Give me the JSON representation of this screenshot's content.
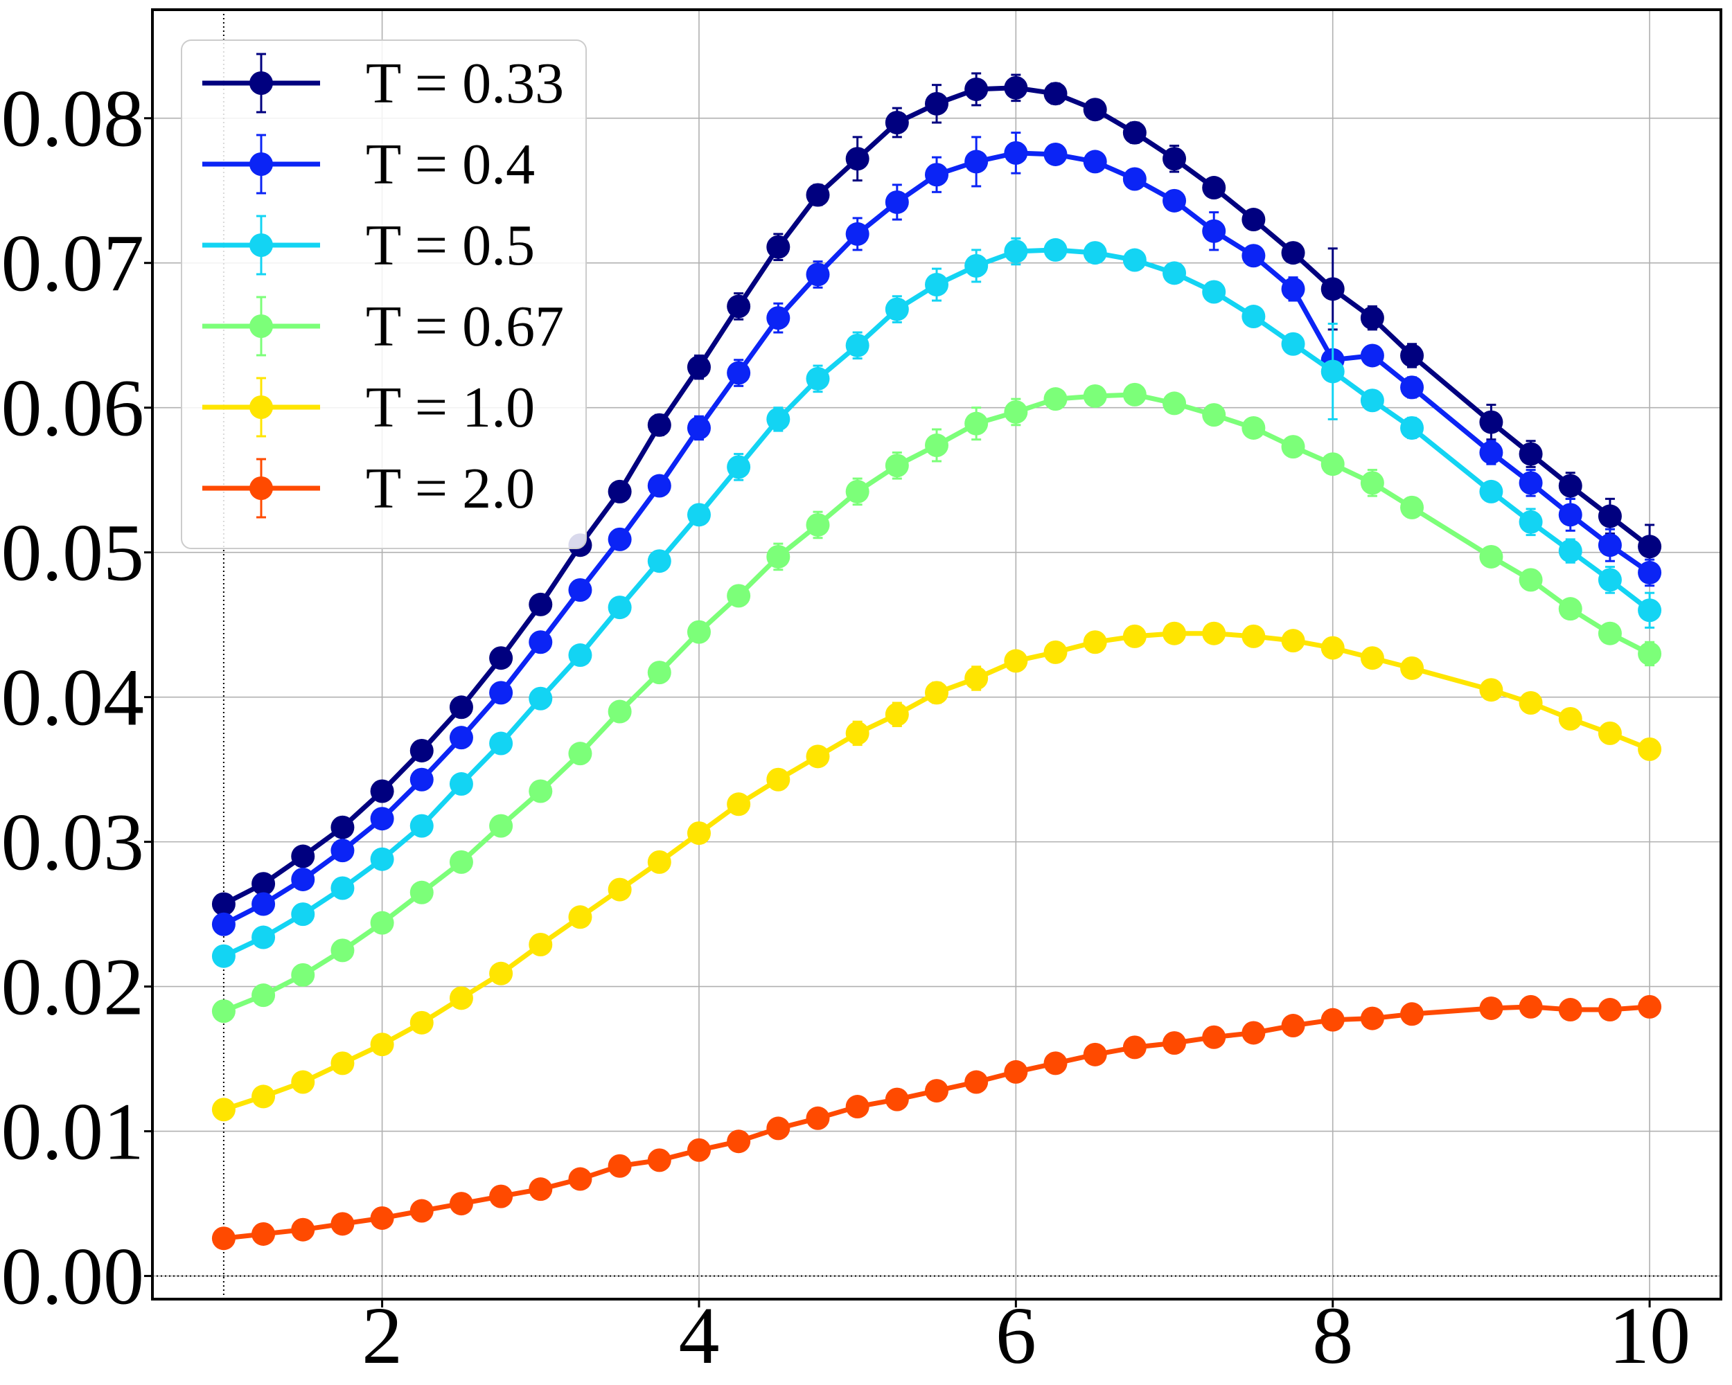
{
  "chart_data": {
    "type": "line",
    "title": "",
    "xlabel": "",
    "ylabel": "",
    "xlim": [
      0.55,
      10.45
    ],
    "ylim": [
      -0.0016,
      0.0875
    ],
    "xticks": [
      2,
      4,
      6,
      8,
      10
    ],
    "xtick_labels": [
      "2",
      "4",
      "6",
      "8",
      "10"
    ],
    "yticks": [
      0.0,
      0.01,
      0.02,
      0.03,
      0.04,
      0.05,
      0.06,
      0.07,
      0.08
    ],
    "ytick_labels": [
      "0.00",
      "0.01",
      "0.02",
      "0.03",
      "0.04",
      "0.05",
      "0.06",
      "0.07",
      "0.08"
    ],
    "grid": true,
    "reference_lines": {
      "x": 1.0,
      "y": 0.0
    },
    "legend_position": "top-left",
    "x": [
      1.0,
      1.25,
      1.5,
      1.75,
      2.0,
      2.25,
      2.5,
      2.75,
      3.0,
      3.25,
      3.5,
      3.75,
      4.0,
      4.25,
      4.5,
      4.75,
      5.0,
      5.25,
      5.5,
      5.75,
      6.0,
      6.25,
      6.5,
      6.75,
      7.0,
      7.25,
      7.5,
      7.75,
      8.0,
      8.25,
      8.5,
      9.0,
      9.25,
      9.5,
      9.75,
      10.0
    ],
    "series": [
      {
        "name": "T = 0.33",
        "color": "#00007f",
        "values": [
          0.0257,
          0.0271,
          0.029,
          0.031,
          0.0335,
          0.0363,
          0.0393,
          0.0427,
          0.0464,
          0.0505,
          0.0542,
          0.0588,
          0.0628,
          0.067,
          0.0711,
          0.0747,
          0.0772,
          0.0797,
          0.081,
          0.082,
          0.0821,
          0.0817,
          0.0806,
          0.079,
          0.0772,
          0.0752,
          0.073,
          0.0707,
          0.0682,
          0.0662,
          0.0636,
          0.059,
          0.0568,
          0.0546,
          0.0525,
          0.0504
        ],
        "errors": [
          0.0004,
          0.0004,
          0.0004,
          0.0004,
          0.0004,
          0.0004,
          0.0004,
          0.0005,
          0.0004,
          0.0005,
          0.0006,
          0.0007,
          0.0008,
          0.0009,
          0.0009,
          0.0007,
          0.0015,
          0.001,
          0.0013,
          0.0011,
          0.0009,
          0.0007,
          0.0006,
          0.0007,
          0.0009,
          0.0006,
          0.0006,
          0.0006,
          0.0028,
          0.0008,
          0.0008,
          0.0012,
          0.0009,
          0.0009,
          0.0012,
          0.0015
        ]
      },
      {
        "name": "T = 0.4",
        "color": "#0b24f5",
        "values": [
          0.0243,
          0.0257,
          0.0274,
          0.0294,
          0.0316,
          0.0343,
          0.0372,
          0.0403,
          0.0438,
          0.0474,
          0.0509,
          0.0546,
          0.0586,
          0.0624,
          0.0662,
          0.0692,
          0.072,
          0.0742,
          0.0761,
          0.077,
          0.0776,
          0.0775,
          0.077,
          0.0758,
          0.0743,
          0.0722,
          0.0705,
          0.0682,
          0.0633,
          0.0636,
          0.0614,
          0.0569,
          0.0548,
          0.0526,
          0.0505,
          0.0486
        ],
        "errors": [
          0.0004,
          0.0004,
          0.0004,
          0.0004,
          0.0004,
          0.0004,
          0.0004,
          0.0004,
          0.0004,
          0.0004,
          0.0005,
          0.0006,
          0.0008,
          0.0009,
          0.001,
          0.0009,
          0.0011,
          0.0012,
          0.0012,
          0.0017,
          0.0014,
          0.0006,
          0.0005,
          0.0006,
          0.0005,
          0.0013,
          0.0006,
          0.0008,
          0.0005,
          0.0006,
          0.0007,
          0.0008,
          0.0009,
          0.0011,
          0.0011,
          0.0009
        ]
      },
      {
        "name": "T = 0.5",
        "color": "#13d4f3",
        "values": [
          0.0221,
          0.0234,
          0.025,
          0.0268,
          0.0288,
          0.0311,
          0.034,
          0.0368,
          0.0399,
          0.0429,
          0.0462,
          0.0494,
          0.0526,
          0.0559,
          0.0592,
          0.062,
          0.0643,
          0.0668,
          0.0685,
          0.0698,
          0.0708,
          0.0709,
          0.0707,
          0.0702,
          0.0693,
          0.068,
          0.0663,
          0.0644,
          0.0625,
          0.0605,
          0.0586,
          0.0542,
          0.0521,
          0.0501,
          0.0481,
          0.046
        ],
        "errors": [
          0.0004,
          0.0004,
          0.0004,
          0.0004,
          0.0004,
          0.0004,
          0.0004,
          0.0004,
          0.0004,
          0.0004,
          0.0004,
          0.0004,
          0.0006,
          0.0009,
          0.0008,
          0.0009,
          0.0009,
          0.0009,
          0.0011,
          0.0011,
          0.0009,
          0.0006,
          0.0005,
          0.0004,
          0.0005,
          0.0004,
          0.0005,
          0.0005,
          0.0033,
          0.0005,
          0.0007,
          0.0005,
          0.0009,
          0.0008,
          0.0009,
          0.0012
        ]
      },
      {
        "name": "T = 0.67",
        "color": "#7cff79",
        "values": [
          0.0183,
          0.0194,
          0.0208,
          0.0225,
          0.0244,
          0.0265,
          0.0286,
          0.0311,
          0.0335,
          0.0361,
          0.039,
          0.0417,
          0.0445,
          0.047,
          0.0497,
          0.0519,
          0.0542,
          0.056,
          0.0574,
          0.0589,
          0.0597,
          0.0606,
          0.0608,
          0.0609,
          0.0603,
          0.0595,
          0.0586,
          0.0573,
          0.0561,
          0.0548,
          0.0531,
          0.0497,
          0.0481,
          0.0461,
          0.0444,
          0.043
        ],
        "errors": [
          0.0004,
          0.0004,
          0.0004,
          0.0004,
          0.0004,
          0.0004,
          0.0004,
          0.0004,
          0.0004,
          0.0004,
          0.0004,
          0.0004,
          0.0004,
          0.0004,
          0.0009,
          0.0009,
          0.0009,
          0.0009,
          0.0011,
          0.0011,
          0.0009,
          0.0005,
          0.0004,
          0.0004,
          0.0004,
          0.0004,
          0.0005,
          0.0005,
          0.0004,
          0.0009,
          0.0006,
          0.0005,
          0.0005,
          0.0005,
          0.0005,
          0.0008
        ]
      },
      {
        "name": "T = 1.0",
        "color": "#ffe500",
        "values": [
          0.0115,
          0.0124,
          0.0134,
          0.0147,
          0.016,
          0.0175,
          0.0192,
          0.0209,
          0.0229,
          0.0248,
          0.0267,
          0.0286,
          0.0306,
          0.0326,
          0.0343,
          0.0359,
          0.0375,
          0.0388,
          0.0403,
          0.0413,
          0.0425,
          0.0431,
          0.0438,
          0.0442,
          0.0444,
          0.0444,
          0.0442,
          0.0439,
          0.0434,
          0.0427,
          0.042,
          0.0405,
          0.0396,
          0.0385,
          0.0375,
          0.0364
        ],
        "errors": [
          0.0003,
          0.0003,
          0.0003,
          0.0003,
          0.0003,
          0.0003,
          0.0003,
          0.0003,
          0.0003,
          0.0003,
          0.0003,
          0.0003,
          0.0003,
          0.0003,
          0.0005,
          0.0006,
          0.0008,
          0.0008,
          0.0007,
          0.0008,
          0.0006,
          0.0004,
          0.0004,
          0.0004,
          0.0004,
          0.0004,
          0.0004,
          0.0004,
          0.0004,
          0.0004,
          0.0004,
          0.0004,
          0.0004,
          0.0004,
          0.0004,
          0.0004
        ]
      },
      {
        "name": "T = 2.0",
        "color": "#ff4a00",
        "values": [
          0.0026,
          0.0029,
          0.0032,
          0.0036,
          0.004,
          0.0045,
          0.005,
          0.0055,
          0.006,
          0.0067,
          0.0076,
          0.008,
          0.0087,
          0.0093,
          0.0102,
          0.0109,
          0.0117,
          0.0122,
          0.0128,
          0.0134,
          0.0141,
          0.0147,
          0.0153,
          0.0158,
          0.0161,
          0.0165,
          0.0168,
          0.0173,
          0.0177,
          0.0178,
          0.0181,
          0.0185,
          0.0186,
          0.0184,
          0.0184,
          0.0186
        ],
        "errors": [
          0.0002,
          0.0002,
          0.0002,
          0.0002,
          0.0002,
          0.0002,
          0.0002,
          0.0002,
          0.0002,
          0.0002,
          0.0002,
          0.0002,
          0.0002,
          0.0002,
          0.0002,
          0.0002,
          0.0002,
          0.0002,
          0.0002,
          0.0002,
          0.0002,
          0.0002,
          0.0002,
          0.0002,
          0.0002,
          0.0002,
          0.0002,
          0.0002,
          0.0002,
          0.0002,
          0.0002,
          0.0002,
          0.0002,
          0.0002,
          0.0002,
          0.0002
        ]
      }
    ]
  }
}
